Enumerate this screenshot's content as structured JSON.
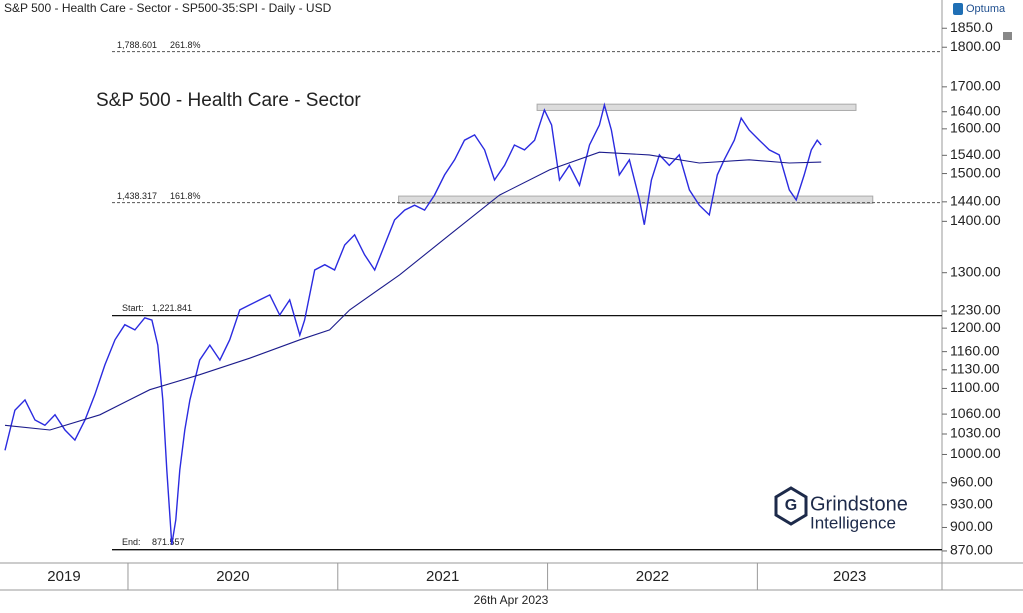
{
  "chart_data": {
    "type": "line",
    "title": "S&P 500 - Health Care - Sector - SP500-35:SPI - Daily - USD",
    "label": "S&P 500 - Health Care - Sector",
    "brand": "Optuma",
    "date": "26th Apr 2023",
    "watermark": [
      "Grindstone",
      "Intelligence"
    ],
    "log_scale": true,
    "xlim": [
      2019.39,
      2023.88
    ],
    "xticks": [
      2019,
      2020,
      2021,
      2022,
      2023
    ],
    "ylim": [
      855,
      1927
    ],
    "yticks": [
      {
        "value": 1850,
        "label": "1850.0"
      },
      {
        "value": 1800,
        "label": "1800.00"
      },
      {
        "value": 1700,
        "label": "1700.00"
      },
      {
        "value": 1640,
        "label": "1640.00"
      },
      {
        "value": 1600,
        "label": "1600.00"
      },
      {
        "value": 1540,
        "label": "1540.00"
      },
      {
        "value": 1500,
        "label": "1500.00"
      },
      {
        "value": 1440,
        "label": "1440.00"
      },
      {
        "value": 1400,
        "label": "1400.00"
      },
      {
        "value": 1300,
        "label": "1300.00"
      },
      {
        "value": 1230,
        "label": "1230.00"
      },
      {
        "value": 1200,
        "label": "1200.00"
      },
      {
        "value": 1160,
        "label": "1160.00"
      },
      {
        "value": 1130,
        "label": "1130.00"
      },
      {
        "value": 1100,
        "label": "1100.00"
      },
      {
        "value": 1060,
        "label": "1060.00"
      },
      {
        "value": 1030,
        "label": "1030.00"
      },
      {
        "value": 1000,
        "label": "1000.00"
      },
      {
        "value": 960,
        "label": "960.00"
      },
      {
        "value": 930,
        "label": "930.00"
      },
      {
        "value": 900,
        "label": "900.00"
      },
      {
        "value": 870,
        "label": "870.00"
      }
    ],
    "series": [
      {
        "color": "#2b2be0",
        "x": [
          2019.414,
          2019.461,
          2019.509,
          2019.557,
          2019.604,
          2019.652,
          2019.7,
          2019.747,
          2019.795,
          2019.842,
          2019.89,
          2019.938,
          2019.985,
          2020.033,
          2020.08,
          2020.114,
          2020.142,
          2020.166,
          2020.185,
          2020.209,
          2020.228,
          2020.247,
          2020.271,
          2020.295,
          2020.342,
          2020.39,
          2020.438,
          2020.485,
          2020.533,
          2020.58,
          2020.628,
          2020.676,
          2020.723,
          2020.771,
          2020.819,
          2020.842,
          2020.89,
          2020.938,
          2020.985,
          2021.033,
          2021.08,
          2021.128,
          2021.176,
          2021.223,
          2021.271,
          2021.319,
          2021.366,
          2021.414,
          2021.461,
          2021.509,
          2021.557,
          2021.604,
          2021.652,
          2021.7,
          2021.747,
          2021.795,
          2021.842,
          2021.89,
          2021.938,
          2021.985,
          2022.019,
          2022.057,
          2022.104,
          2022.152,
          2022.2,
          2022.247,
          2022.271,
          2022.304,
          2022.342,
          2022.39,
          2022.438,
          2022.461,
          2022.495,
          2022.533,
          2022.58,
          2022.628,
          2022.676,
          2022.723,
          2022.771,
          2022.809,
          2022.842,
          2022.89,
          2022.923,
          2022.961,
          2023.009,
          2023.057,
          2023.104,
          2023.152,
          2023.185,
          2023.223,
          2023.257,
          2023.285,
          2023.304
        ],
        "values": [
          1006,
          1066,
          1082,
          1051,
          1043,
          1059,
          1036,
          1021,
          1051,
          1090,
          1138,
          1180,
          1206,
          1197,
          1218,
          1214,
          1171,
          1082,
          978,
          878,
          910,
          978,
          1036,
          1082,
          1146,
          1171,
          1146,
          1180,
          1232,
          1241,
          1250,
          1259,
          1223,
          1250,
          1188,
          1214,
          1305,
          1315,
          1305,
          1353,
          1373,
          1334,
          1305,
          1353,
          1403,
          1423,
          1433,
          1423,
          1454,
          1497,
          1530,
          1574,
          1586,
          1552,
          1486,
          1518,
          1563,
          1552,
          1574,
          1644,
          1609,
          1486,
          1518,
          1475,
          1563,
          1609,
          1656,
          1597,
          1497,
          1530,
          1444,
          1393,
          1486,
          1541,
          1518,
          1541,
          1465,
          1433,
          1413,
          1497,
          1530,
          1574,
          1625,
          1597,
          1574,
          1552,
          1541,
          1465,
          1444,
          1497,
          1552,
          1574,
          1563
        ]
      },
      {
        "color": "#1c1c8c",
        "x": [
          2019.414,
          2019.628,
          2019.866,
          2020.104,
          2020.342,
          2020.58,
          2020.819,
          2020.961,
          2021.057,
          2021.295,
          2021.533,
          2021.771,
          2022.009,
          2022.247,
          2022.485,
          2022.723,
          2022.961,
          2023.152,
          2023.304
        ],
        "values": [
          1043,
          1036,
          1059,
          1098,
          1122,
          1149,
          1180,
          1197,
          1232,
          1296,
          1373,
          1454,
          1508,
          1547,
          1541,
          1523,
          1530,
          1523,
          1525
        ]
      }
    ],
    "levels": [
      {
        "name": "Start:",
        "value": 1221.841,
        "value_label": "1,221.841"
      },
      {
        "name": "End:",
        "value": 871.557,
        "value_label": "871.557"
      }
    ],
    "fibs": [
      {
        "value": 1788.601,
        "value_label": "1,788.601",
        "ratio": "261.8%"
      },
      {
        "value": 1438.317,
        "value_label": "1,438.317",
        "ratio": "161.8%"
      }
    ],
    "zones": [
      {
        "low": 1643,
        "high": 1658,
        "start": 2021.95,
        "end": 2023.47
      },
      {
        "low": 1437,
        "high": 1452,
        "start": 2021.29,
        "end": 2023.55
      }
    ]
  }
}
